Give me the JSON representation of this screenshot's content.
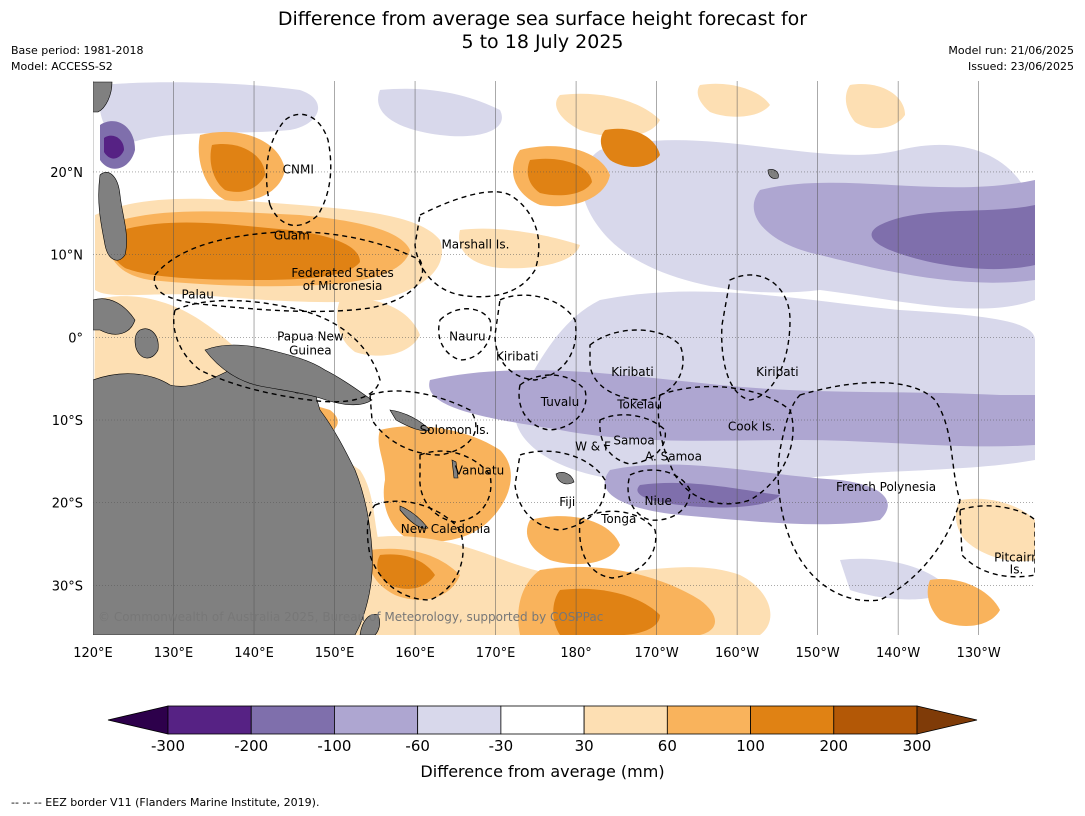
{
  "title": {
    "line1": "Difference from average sea surface height forecast for",
    "line2": "5 to 18 July 2025"
  },
  "meta_left": {
    "base_period": "Base period: 1981-2018",
    "model": "Model: ACCESS-S2"
  },
  "meta_right": {
    "model_run": "Model run: 21/06/2025",
    "issued": "Issued: 23/06/2025"
  },
  "map": {
    "extent": {
      "lon_min": 120,
      "lon_max": 237,
      "lat_min": -36,
      "lat_max": 31
    },
    "gridlines": true,
    "land_color": "#808080",
    "lat_ticks": [
      {
        "lat": 20,
        "label": "20°N"
      },
      {
        "lat": 10,
        "label": "10°N"
      },
      {
        "lat": 0,
        "label": "0°"
      },
      {
        "lat": -10,
        "label": "10°S"
      },
      {
        "lat": -20,
        "label": "20°S"
      },
      {
        "lat": -30,
        "label": "30°S"
      }
    ],
    "lon_ticks": [
      {
        "lon": 120,
        "label": "120°E"
      },
      {
        "lon": 130,
        "label": "130°E"
      },
      {
        "lon": 140,
        "label": "140°E"
      },
      {
        "lon": 150,
        "label": "150°E"
      },
      {
        "lon": 160,
        "label": "160°E"
      },
      {
        "lon": 170,
        "label": "170°E"
      },
      {
        "lon": 180,
        "label": "180°"
      },
      {
        "lon": 190,
        "label": "170°W"
      },
      {
        "lon": 200,
        "label": "160°W"
      },
      {
        "lon": 210,
        "label": "150°W"
      },
      {
        "lon": 220,
        "label": "140°W"
      },
      {
        "lon": 230,
        "label": "130°W"
      }
    ],
    "region_labels": [
      {
        "text": "CNMI",
        "lon": 145.5,
        "lat": 20.3
      },
      {
        "text": "Guam",
        "lon": 144.7,
        "lat": 12.3
      },
      {
        "text": "Marshall Is.",
        "lon": 167.5,
        "lat": 11.2
      },
      {
        "text": "Federated States",
        "lon": 151,
        "lat": 7.8
      },
      {
        "text": "of Micronesia",
        "lon": 151,
        "lat": 6.2
      },
      {
        "text": "Palau",
        "lon": 133,
        "lat": 5.2
      },
      {
        "text": "Papua New",
        "lon": 147,
        "lat": 0.1
      },
      {
        "text": "Guinea",
        "lon": 147,
        "lat": -1.6
      },
      {
        "text": "Nauru",
        "lon": 166.5,
        "lat": 0.1
      },
      {
        "text": "Kiribati",
        "lon": 172.7,
        "lat": -2.3
      },
      {
        "text": "Kiribati",
        "lon": 187,
        "lat": -4.2
      },
      {
        "text": "Kiribati",
        "lon": 205,
        "lat": -4.2
      },
      {
        "text": "Tuvalu",
        "lon": 178,
        "lat": -7.8
      },
      {
        "text": "Tokelau",
        "lon": 187.9,
        "lat": -8.1
      },
      {
        "text": "Solomon Is.",
        "lon": 164.9,
        "lat": -11.2
      },
      {
        "text": "Cook Is.",
        "lon": 201.8,
        "lat": -10.8
      },
      {
        "text": "Samoa",
        "lon": 187.2,
        "lat": -12.5
      },
      {
        "text": "W & F",
        "lon": 182.1,
        "lat": -13.2
      },
      {
        "text": "A. Samoa",
        "lon": 192.1,
        "lat": -14.4
      },
      {
        "text": "Vanuatu",
        "lon": 168,
        "lat": -16.1
      },
      {
        "text": "French Polynesia",
        "lon": 218.5,
        "lat": -18.1
      },
      {
        "text": "Fiji",
        "lon": 178.9,
        "lat": -19.9
      },
      {
        "text": "Niue",
        "lon": 190.2,
        "lat": -19.8
      },
      {
        "text": "Tonga",
        "lon": 185.3,
        "lat": -22
      },
      {
        "text": "New Caledonia",
        "lon": 163.8,
        "lat": -23.2
      },
      {
        "text": "Pitcairn",
        "lon": 234.7,
        "lat": -26.6
      },
      {
        "text": "Is.",
        "lon": 234.7,
        "lat": -28.1
      }
    ],
    "copyright": "© Commonwealth of Australia 2025, Bureau of Meteorology, supported by COSPPac"
  },
  "colorbar": {
    "title": "Difference from average (mm)",
    "levels": [
      "-300",
      "-200",
      "-100",
      "-60",
      "-30",
      "30",
      "60",
      "100",
      "200",
      "300"
    ],
    "colors": [
      "#562284",
      "#7f6fac",
      "#aea6d1",
      "#d8d8eb",
      "#ffffff",
      "#fddfb3",
      "#f9b35c",
      "#e08214",
      "#b35806"
    ],
    "extend_low_color": "#2d004b",
    "extend_high_color": "#7f3b08"
  },
  "footnote": "--  --  -- EEZ border V11 (Flanders Marine Institute, 2019)."
}
